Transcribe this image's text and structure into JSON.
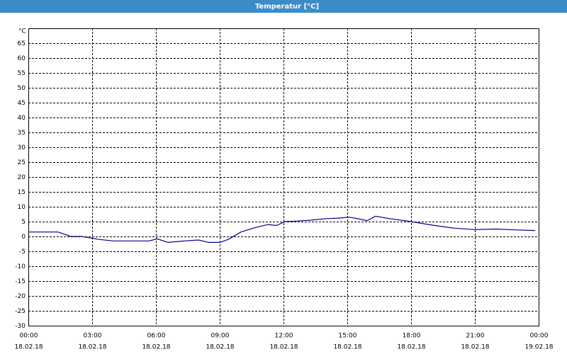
{
  "chart_data": {
    "type": "line",
    "title": "Temperatur [°C]",
    "y_label": "°C",
    "x": [
      0,
      1.4,
      2.0,
      2.5,
      3.33,
      4.0,
      5.0,
      5.67,
      6.07,
      6.57,
      7.33,
      8.0,
      8.5,
      9.0,
      9.4,
      10.0,
      10.67,
      11.27,
      11.67,
      12.07,
      12.67,
      13.33,
      14.0,
      14.67,
      15.07,
      15.5,
      15.93,
      16.33,
      17.0,
      18.0,
      19.0,
      20.0,
      21.0,
      22.0,
      23.0,
      23.83
    ],
    "values": [
      1.5,
      1.5,
      0,
      0,
      -1,
      -1.5,
      -1.5,
      -1.5,
      -0.8,
      -2,
      -1.5,
      -1.2,
      -2,
      -2,
      -1,
      1.5,
      3,
      4,
      3.7,
      5,
      5.2,
      5.5,
      6,
      6.2,
      6.5,
      6,
      5.3,
      6.8,
      6,
      5,
      3.8,
      2.8,
      2.3,
      2.5,
      2.2,
      2
    ],
    "color": "#00008b",
    "xlim": [
      0,
      24
    ],
    "xticks": [
      {
        "value": 0,
        "time": "00:00",
        "date": "18.02.18"
      },
      {
        "value": 3,
        "time": "03:00",
        "date": "18.02.18"
      },
      {
        "value": 6,
        "time": "06:00",
        "date": "18.02.18"
      },
      {
        "value": 9,
        "time": "09:00",
        "date": "18.02.18"
      },
      {
        "value": 12,
        "time": "12:00",
        "date": "18.02.18"
      },
      {
        "value": 15,
        "time": "15:00",
        "date": "18.02.18"
      },
      {
        "value": 18,
        "time": "18:00",
        "date": "18.02.18"
      },
      {
        "value": 21,
        "time": "21:00",
        "date": "18.02.18"
      },
      {
        "value": 24,
        "time": "00:00",
        "date": "19.02.18"
      }
    ],
    "ylim": [
      -30,
      70
    ],
    "yticks": [
      -30,
      -25,
      -20,
      -15,
      -10,
      -5,
      0,
      5,
      10,
      15,
      20,
      25,
      30,
      35,
      40,
      45,
      50,
      55,
      60,
      65
    ],
    "grid": true
  }
}
